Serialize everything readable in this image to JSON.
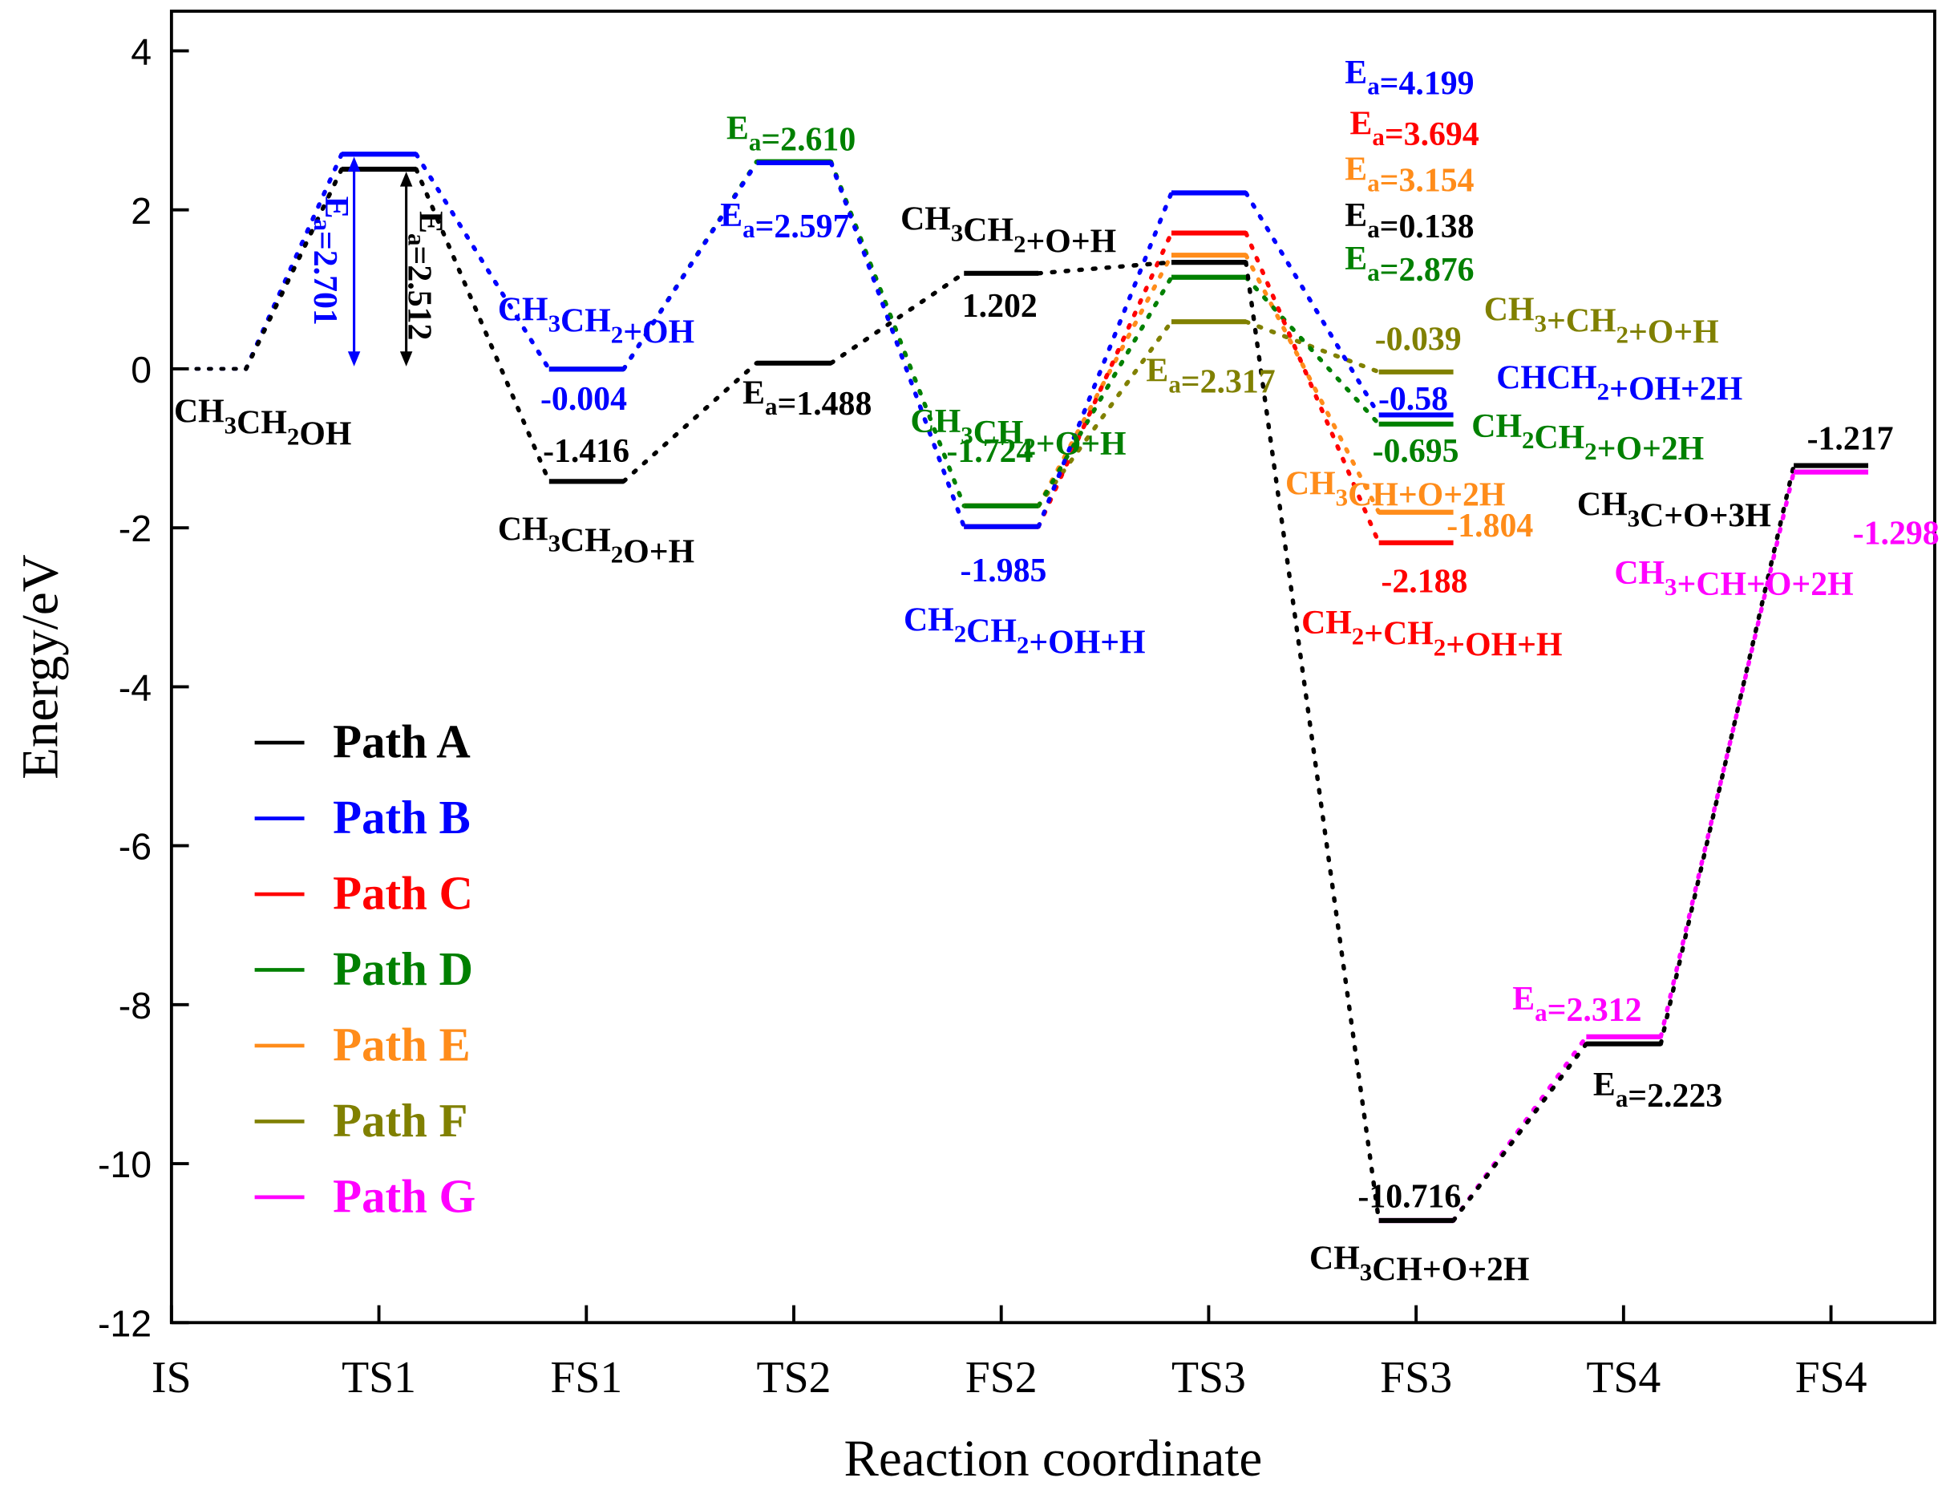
{
  "chart_data": {
    "type": "energy_profile",
    "xlabel": "Reaction coordinate",
    "ylabel": "Energy/eV",
    "categories": [
      "IS",
      "TS1",
      "FS1",
      "TS2",
      "FS2",
      "TS3",
      "FS3",
      "TS4",
      "FS4"
    ],
    "ylim": [
      -12,
      4.5
    ],
    "yticks": [
      -12,
      -10,
      -8,
      -6,
      -4,
      -2,
      0,
      2,
      4
    ],
    "legend": "lower left",
    "series": [
      {
        "name": "Path A",
        "color": "#000000",
        "values": [
          0,
          2.512,
          -1.416,
          0.072,
          1.202,
          1.34,
          -10.716,
          -8.493,
          -1.217
        ]
      },
      {
        "name": "Path B",
        "color": "#0000ff",
        "values": [
          0,
          2.701,
          -0.004,
          2.593,
          -1.985,
          2.214,
          -0.58,
          null,
          null
        ]
      },
      {
        "name": "Path C",
        "color": "#ff0000",
        "values": [
          null,
          null,
          null,
          null,
          -1.985,
          1.709,
          -2.188,
          null,
          null
        ]
      },
      {
        "name": "Path D",
        "color": "#008000",
        "values": [
          null,
          null,
          -0.004,
          2.606,
          -1.724,
          1.152,
          -0.695,
          null,
          null
        ]
      },
      {
        "name": "Path E",
        "color": "#ff8c1a",
        "values": [
          null,
          null,
          null,
          null,
          -1.724,
          1.43,
          -1.804,
          null,
          null
        ]
      },
      {
        "name": "Path F",
        "color": "#808000",
        "values": [
          null,
          null,
          null,
          null,
          -1.724,
          0.593,
          -0.039,
          null,
          null
        ]
      },
      {
        "name": "Path G",
        "color": "#ff00ff",
        "values": [
          null,
          null,
          null,
          null,
          null,
          null,
          -10.716,
          -8.404,
          -1.298
        ]
      }
    ],
    "annotations": [
      {
        "text": "CH3CH2OH",
        "color": "#000000"
      },
      {
        "text": "Ea=2.701",
        "color": "#0000ff"
      },
      {
        "text": "Ea=2.512",
        "color": "#000000"
      },
      {
        "text": "CH3CH2+OH",
        "color": "#0000ff"
      },
      {
        "text": "-0.004",
        "color": "#0000ff"
      },
      {
        "text": "-1.416",
        "color": "#000000"
      },
      {
        "text": "CH3CH2O+H",
        "color": "#000000"
      },
      {
        "text": "Ea=2.610",
        "color": "#008000"
      },
      {
        "text": "Ea=2.597",
        "color": "#0000ff"
      },
      {
        "text": "Ea=1.488",
        "color": "#000000"
      },
      {
        "text": "CH3CH2+O+H",
        "color": "#000000"
      },
      {
        "text": "1.202",
        "color": "#000000"
      },
      {
        "text": "CH3CH2+O+H",
        "color": "#008000"
      },
      {
        "text": "-1.724",
        "color": "#008000"
      },
      {
        "text": "-1.985",
        "color": "#0000ff"
      },
      {
        "text": "CH2CH2+OH+H",
        "color": "#0000ff"
      },
      {
        "text": "Ea=2.317",
        "color": "#808000"
      },
      {
        "text": "Ea=4.199",
        "color": "#0000ff"
      },
      {
        "text": "Ea=3.694",
        "color": "#ff0000"
      },
      {
        "text": "Ea=3.154",
        "color": "#ff8c1a"
      },
      {
        "text": "Ea=0.138",
        "color": "#000000"
      },
      {
        "text": "Ea=2.876",
        "color": "#008000"
      },
      {
        "text": "CH3+CH2+O+H",
        "color": "#808000"
      },
      {
        "text": "-0.039",
        "color": "#808000"
      },
      {
        "text": "CHCH2+OH+2H",
        "color": "#0000ff"
      },
      {
        "text": "-0.58",
        "color": "#0000ff"
      },
      {
        "text": "-0.695",
        "color": "#008000"
      },
      {
        "text": "CH2CH2+O+2H",
        "color": "#008000"
      },
      {
        "text": "CH3CH+O+2H",
        "color": "#ff8c1a"
      },
      {
        "text": "-1.804",
        "color": "#ff8c1a"
      },
      {
        "text": "-2.188",
        "color": "#ff0000"
      },
      {
        "text": "CH2+CH2+OH+H",
        "color": "#ff0000"
      },
      {
        "text": "CH3C+O+3H",
        "color": "#000000"
      },
      {
        "text": "-1.217",
        "color": "#000000"
      },
      {
        "text": "-1.298",
        "color": "#ff00ff"
      },
      {
        "text": "CH3+CH+O+2H",
        "color": "#ff00ff"
      },
      {
        "text": "Ea=2.312",
        "color": "#ff00ff"
      },
      {
        "text": "Ea=2.223",
        "color": "#000000"
      },
      {
        "text": "-10.716",
        "color": "#000000"
      },
      {
        "text": "CH3CH+O+2H",
        "color": "#000000"
      }
    ]
  }
}
